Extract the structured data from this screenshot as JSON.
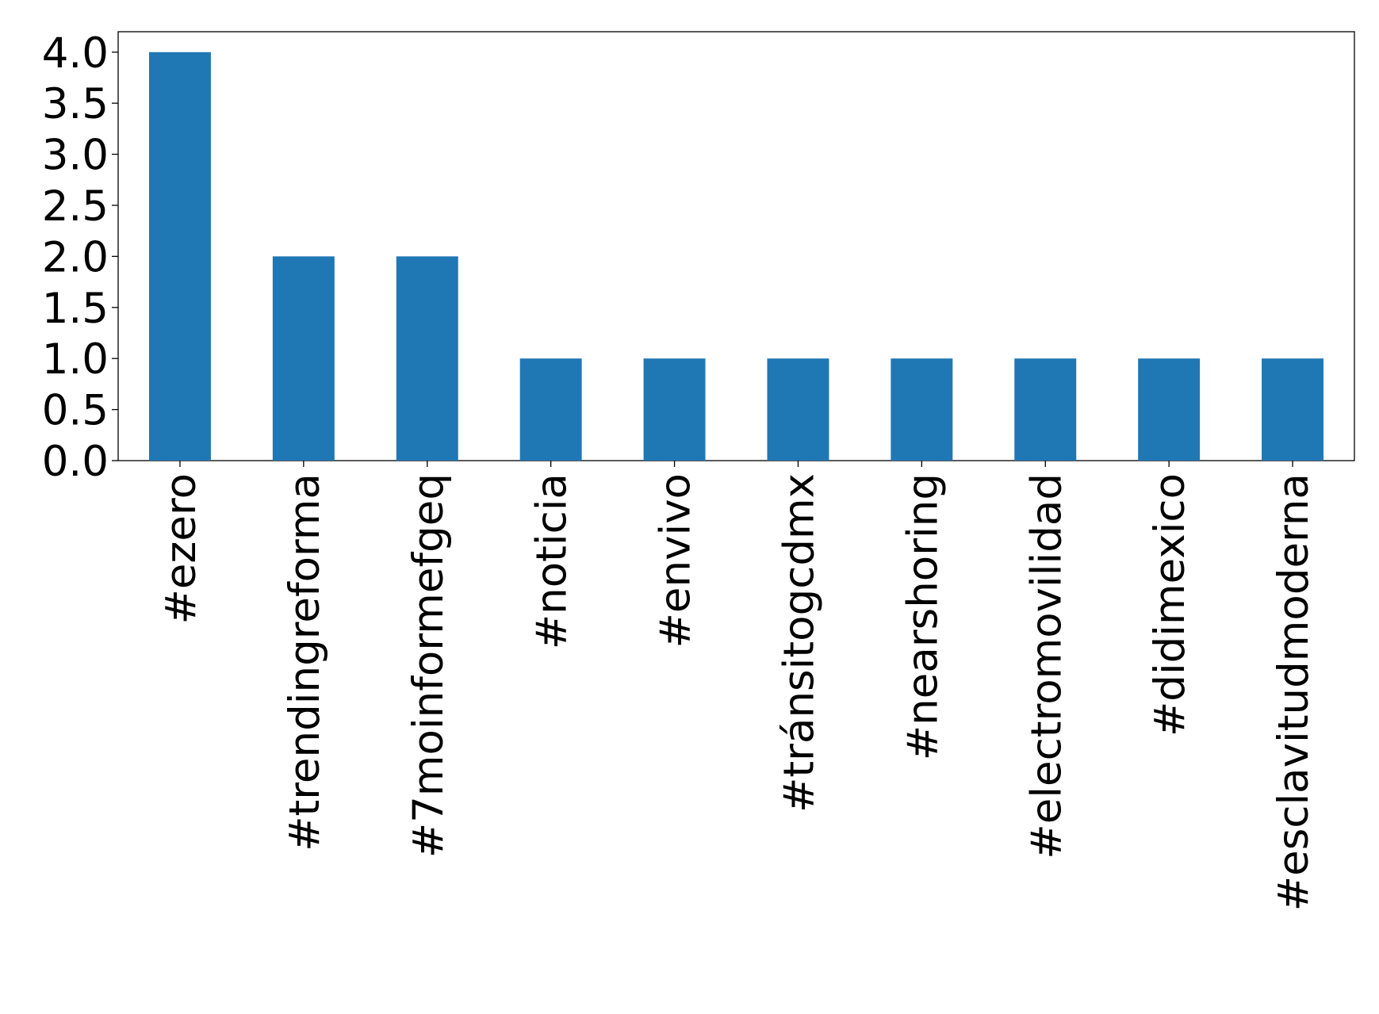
{
  "chart_data": {
    "type": "bar",
    "categories": [
      "#ezero",
      "#trendingreforma",
      "#7moinformefgeq",
      "#noticia",
      "#envivo",
      "#tránsitogcdmx",
      "#nearshoring",
      "#electromovilidad",
      "#didimexico",
      "#esclavitudmoderna"
    ],
    "values": [
      4,
      2,
      2,
      1,
      1,
      1,
      1,
      1,
      1,
      1
    ],
    "color": "#1f77b4",
    "ylim": [
      0,
      4.2
    ],
    "yticks": [
      {
        "value": 0,
        "label": "0.0"
      },
      0.5,
      {
        "value": 1,
        "label": "1.0"
      },
      1.5,
      {
        "value": 2,
        "label": "2.0"
      },
      2.5,
      {
        "value": 3,
        "label": "3.0"
      },
      3.5,
      {
        "value": 4,
        "label": "4.0"
      }
    ],
    "grid": false
  }
}
